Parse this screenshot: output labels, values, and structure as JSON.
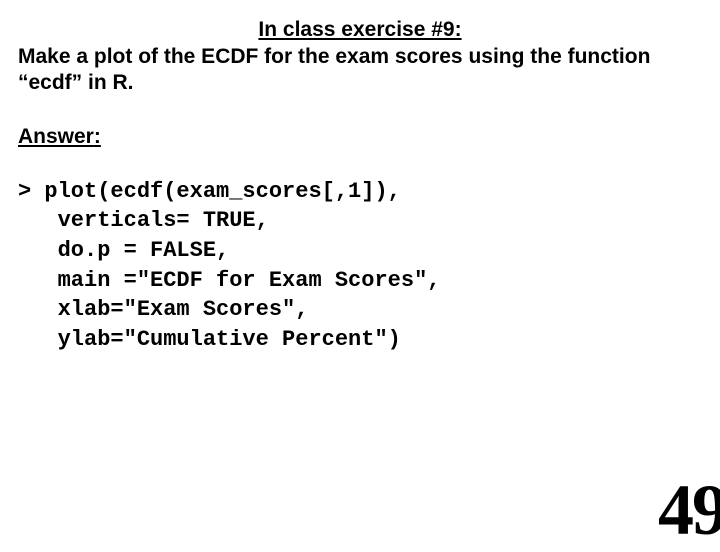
{
  "title": "In class exercise #9:",
  "prompt": "Make a plot of the ECDF for the exam scores using the function “ecdf” in R.",
  "answer_label": "Answer",
  "code": "> plot(ecdf(exam_scores[,1]),\n   verticals= TRUE,\n   do.p = FALSE,\n   main =\"ECDF for Exam Scores\",\n   xlab=\"Exam Scores\",\n   ylab=\"Cumulative Percent\")",
  "page_number": "49",
  "colors": {
    "background": "#ffffff",
    "text": "#000000"
  },
  "typography": {
    "title_fontsize": 21,
    "body_fontsize": 21,
    "code_fontsize": 22,
    "page_num_fontsize": 72,
    "body_family": "Verdana",
    "code_family": "Courier New",
    "page_num_family": "Times New Roman"
  }
}
